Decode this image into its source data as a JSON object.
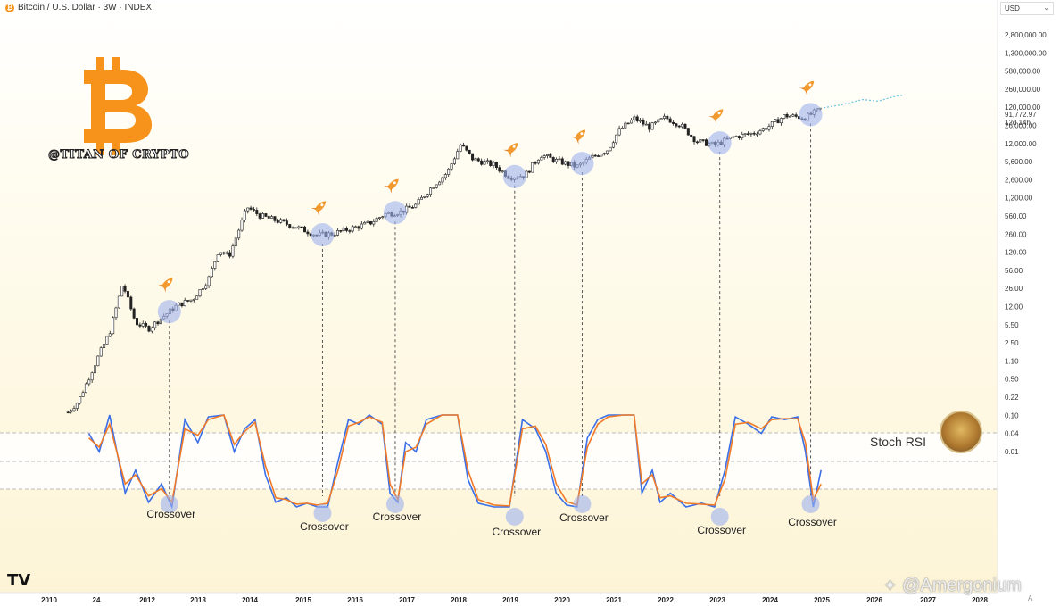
{
  "header": {
    "title": "Bitcoin / U.S. Dollar · 3W · INDEX",
    "icon": "bitcoin-icon"
  },
  "currency_select": {
    "value": "USD"
  },
  "branding": {
    "handle": "@TITAN OF CRYPTO",
    "logo": "bitcoin-logo"
  },
  "indicator": {
    "name": "Stoch RSI"
  },
  "watermark": {
    "text": "@Amergonium",
    "icon": "network-icon"
  },
  "tradingview_mark": "TV",
  "footer_glyph": "A",
  "colors": {
    "rsi_k": "#3a6fe8",
    "rsi_d": "#f07a28",
    "highlight": "#9fb3ee",
    "accent": "#f7931a",
    "candle": "#222222"
  },
  "chart_data": [
    {
      "type": "candlestick",
      "title": "Bitcoin / U.S. Dollar · 3W · INDEX",
      "y_scale": "log",
      "y_ticks": [
        "2,800,000.00",
        "1,300,000.00",
        "580,000.00",
        "260,000.00",
        "120,000.00",
        "26,000.00",
        "12,000.00",
        "5,600.00",
        "2,600.00",
        "1,200.00",
        "560.00",
        "260.00",
        "120.00",
        "56.00",
        "26.00",
        "12.00",
        "5.50",
        "2.50",
        "1.10",
        "0.50",
        "0.22",
        "0.10",
        "0.04",
        "0.01"
      ],
      "x_ticks": [
        "2010",
        "24",
        "2012",
        "2013",
        "2014",
        "2015",
        "2016",
        "2017",
        "2018",
        "2019",
        "2020",
        "2021",
        "2022",
        "2023",
        "2024",
        "2025",
        "2026",
        "2027",
        "2028"
      ],
      "last_price_label": "91,772.97",
      "countdown_label": "12d 14h",
      "price_path": [
        [
          2010.4,
          0.06
        ],
        [
          2010.6,
          0.1
        ],
        [
          2010.8,
          0.3
        ],
        [
          2011.0,
          0.9
        ],
        [
          2011.2,
          2.5
        ],
        [
          2011.45,
          25
        ],
        [
          2011.7,
          4
        ],
        [
          2011.95,
          3
        ],
        [
          2012.2,
          5
        ],
        [
          2012.5,
          9
        ],
        [
          2012.8,
          12
        ],
        [
          2013.1,
          30
        ],
        [
          2013.3,
          120
        ],
        [
          2013.5,
          90
        ],
        [
          2013.85,
          900
        ],
        [
          2014.1,
          600
        ],
        [
          2014.5,
          450
        ],
        [
          2014.9,
          320
        ],
        [
          2015.2,
          240
        ],
        [
          2015.5,
          260
        ],
        [
          2015.8,
          320
        ],
        [
          2016.2,
          420
        ],
        [
          2016.5,
          650
        ],
        [
          2016.8,
          720
        ],
        [
          2017.1,
          1000
        ],
        [
          2017.4,
          2300
        ],
        [
          2017.7,
          4500
        ],
        [
          2017.96,
          17000
        ],
        [
          2018.2,
          8500
        ],
        [
          2018.6,
          6500
        ],
        [
          2018.9,
          3700
        ],
        [
          2019.2,
          4000
        ],
        [
          2019.5,
          10500
        ],
        [
          2019.8,
          8000
        ],
        [
          2020.2,
          6000
        ],
        [
          2020.5,
          9500
        ],
        [
          2020.8,
          13500
        ],
        [
          2021.0,
          32000
        ],
        [
          2021.3,
          58000
        ],
        [
          2021.6,
          38000
        ],
        [
          2021.9,
          60000
        ],
        [
          2022.2,
          42000
        ],
        [
          2022.5,
          20000
        ],
        [
          2022.85,
          16500
        ],
        [
          2023.2,
          24000
        ],
        [
          2023.6,
          29000
        ],
        [
          2023.9,
          40000
        ],
        [
          2024.2,
          66000
        ],
        [
          2024.6,
          60000
        ],
        [
          2024.9,
          91772
        ]
      ],
      "projection_path": [
        [
          2024.95,
          95000
        ],
        [
          2025.3,
          110000
        ],
        [
          2025.7,
          140000
        ],
        [
          2026.0,
          130000
        ],
        [
          2026.3,
          160000
        ],
        [
          2026.5,
          175000
        ]
      ],
      "highlighted_dates": [
        2012.35,
        2015.3,
        2016.7,
        2019.0,
        2020.3,
        2022.95,
        2024.7
      ],
      "annotations": [
        "Crossover",
        "Crossover",
        "Crossover",
        "Crossover",
        "Crossover",
        "Crossover",
        "Crossover"
      ]
    },
    {
      "type": "line",
      "title": "Stoch RSI",
      "y_range": [
        0,
        100
      ],
      "series": [
        {
          "key": "k",
          "points": [
            [
              2010.8,
              80
            ],
            [
              2011.0,
              60
            ],
            [
              2011.2,
              100
            ],
            [
              2011.5,
              15
            ],
            [
              2011.7,
              40
            ],
            [
              2011.95,
              5
            ],
            [
              2012.2,
              25
            ],
            [
              2012.4,
              0
            ],
            [
              2012.65,
              95
            ],
            [
              2012.9,
              70
            ],
            [
              2013.1,
              98
            ],
            [
              2013.4,
              100
            ],
            [
              2013.6,
              60
            ],
            [
              2013.8,
              85
            ],
            [
              2014.0,
              95
            ],
            [
              2014.2,
              35
            ],
            [
              2014.4,
              5
            ],
            [
              2014.6,
              10
            ],
            [
              2014.8,
              0
            ],
            [
              2015.0,
              4
            ],
            [
              2015.2,
              0
            ],
            [
              2015.4,
              0
            ],
            [
              2015.6,
              50
            ],
            [
              2015.8,
              95
            ],
            [
              2016.0,
              90
            ],
            [
              2016.2,
              100
            ],
            [
              2016.45,
              90
            ],
            [
              2016.6,
              15
            ],
            [
              2016.75,
              5
            ],
            [
              2016.9,
              70
            ],
            [
              2017.1,
              60
            ],
            [
              2017.3,
              95
            ],
            [
              2017.6,
              100
            ],
            [
              2017.9,
              100
            ],
            [
              2018.1,
              30
            ],
            [
              2018.3,
              4
            ],
            [
              2018.6,
              0
            ],
            [
              2018.9,
              0
            ],
            [
              2019.15,
              95
            ],
            [
              2019.4,
              85
            ],
            [
              2019.6,
              60
            ],
            [
              2019.8,
              15
            ],
            [
              2020.0,
              2
            ],
            [
              2020.2,
              0
            ],
            [
              2020.4,
              75
            ],
            [
              2020.6,
              95
            ],
            [
              2020.8,
              100
            ],
            [
              2021.1,
              100
            ],
            [
              2021.3,
              100
            ],
            [
              2021.45,
              15
            ],
            [
              2021.65,
              40
            ],
            [
              2021.8,
              5
            ],
            [
              2022.0,
              15
            ],
            [
              2022.3,
              0
            ],
            [
              2022.6,
              4
            ],
            [
              2022.85,
              0
            ],
            [
              2023.05,
              40
            ],
            [
              2023.25,
              98
            ],
            [
              2023.5,
              90
            ],
            [
              2023.75,
              80
            ],
            [
              2023.95,
              98
            ],
            [
              2024.2,
              95
            ],
            [
              2024.45,
              98
            ],
            [
              2024.6,
              60
            ],
            [
              2024.75,
              0
            ],
            [
              2024.9,
              40
            ]
          ]
        },
        {
          "key": "d",
          "points": [
            [
              2010.8,
              75
            ],
            [
              2011.0,
              65
            ],
            [
              2011.2,
              90
            ],
            [
              2011.5,
              25
            ],
            [
              2011.7,
              35
            ],
            [
              2011.95,
              12
            ],
            [
              2012.2,
              20
            ],
            [
              2012.4,
              5
            ],
            [
              2012.65,
              85
            ],
            [
              2012.9,
              78
            ],
            [
              2013.1,
              95
            ],
            [
              2013.4,
              100
            ],
            [
              2013.6,
              68
            ],
            [
              2013.8,
              82
            ],
            [
              2014.0,
              92
            ],
            [
              2014.2,
              45
            ],
            [
              2014.4,
              10
            ],
            [
              2014.6,
              8
            ],
            [
              2014.8,
              3
            ],
            [
              2015.0,
              4
            ],
            [
              2015.2,
              2
            ],
            [
              2015.4,
              4
            ],
            [
              2015.6,
              40
            ],
            [
              2015.8,
              88
            ],
            [
              2016.0,
              92
            ],
            [
              2016.2,
              98
            ],
            [
              2016.45,
              92
            ],
            [
              2016.6,
              25
            ],
            [
              2016.75,
              8
            ],
            [
              2016.9,
              60
            ],
            [
              2017.1,
              65
            ],
            [
              2017.3,
              90
            ],
            [
              2017.6,
              100
            ],
            [
              2017.9,
              100
            ],
            [
              2018.1,
              40
            ],
            [
              2018.3,
              8
            ],
            [
              2018.6,
              2
            ],
            [
              2018.9,
              1
            ],
            [
              2019.15,
              85
            ],
            [
              2019.4,
              88
            ],
            [
              2019.6,
              68
            ],
            [
              2019.8,
              25
            ],
            [
              2020.0,
              6
            ],
            [
              2020.2,
              2
            ],
            [
              2020.4,
              65
            ],
            [
              2020.6,
              90
            ],
            [
              2020.8,
              98
            ],
            [
              2021.1,
              100
            ],
            [
              2021.3,
              100
            ],
            [
              2021.45,
              25
            ],
            [
              2021.65,
              35
            ],
            [
              2021.8,
              10
            ],
            [
              2022.0,
              12
            ],
            [
              2022.3,
              4
            ],
            [
              2022.6,
              3
            ],
            [
              2022.85,
              2
            ],
            [
              2023.05,
              30
            ],
            [
              2023.25,
              90
            ],
            [
              2023.5,
              92
            ],
            [
              2023.75,
              85
            ],
            [
              2023.95,
              95
            ],
            [
              2024.2,
              96
            ],
            [
              2024.45,
              96
            ],
            [
              2024.6,
              70
            ],
            [
              2024.75,
              8
            ],
            [
              2024.9,
              25
            ]
          ]
        }
      ],
      "bands": [
        80,
        50,
        20
      ],
      "crossover_dates": [
        2012.35,
        2015.3,
        2016.7,
        2019.0,
        2020.3,
        2022.95,
        2024.7
      ],
      "crossover_labels": [
        "Crossover",
        "Crossover",
        "Crossover",
        "Crossover",
        "Crossover",
        "Crossover",
        "Crossover"
      ]
    }
  ]
}
